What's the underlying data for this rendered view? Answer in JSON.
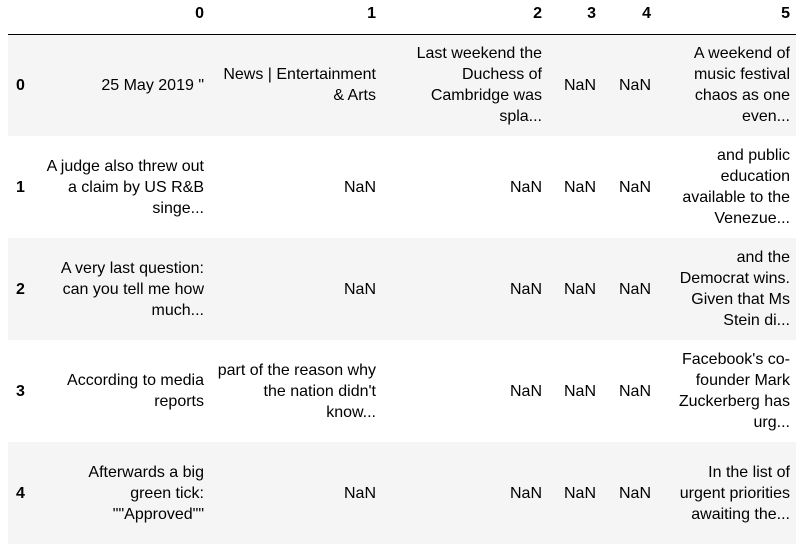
{
  "table": {
    "index_header": "",
    "columns": [
      "0",
      "1",
      "2",
      "3",
      "4",
      "5"
    ],
    "rows": [
      {
        "index": "0",
        "cells": [
          "25 May 2019 \"",
          "News | Entertainment & Arts",
          "Last weekend the Duchess of Cambridge was spla...",
          "NaN",
          "NaN",
          "A weekend of music festival chaos as one even..."
        ]
      },
      {
        "index": "1",
        "cells": [
          "A judge also threw out a claim by US R&B singe...",
          "NaN",
          "NaN",
          "NaN",
          "NaN",
          "and public education available to the Venezue..."
        ]
      },
      {
        "index": "2",
        "cells": [
          "A very last question: can you tell me how much...",
          "NaN",
          "NaN",
          "NaN",
          "NaN",
          "and the Democrat wins. Given that Ms Stein di..."
        ]
      },
      {
        "index": "3",
        "cells": [
          "According to media reports",
          "part of the reason why the nation didn't know...",
          "NaN",
          "NaN",
          "NaN",
          "Facebook's co-founder Mark Zuckerberg has urg..."
        ]
      },
      {
        "index": "4",
        "cells": [
          "Afterwards a big green tick: \"\"Approved\"\"",
          "NaN",
          "NaN",
          "NaN",
          "NaN",
          "In the list of urgent priorities awaiting the..."
        ]
      }
    ]
  }
}
